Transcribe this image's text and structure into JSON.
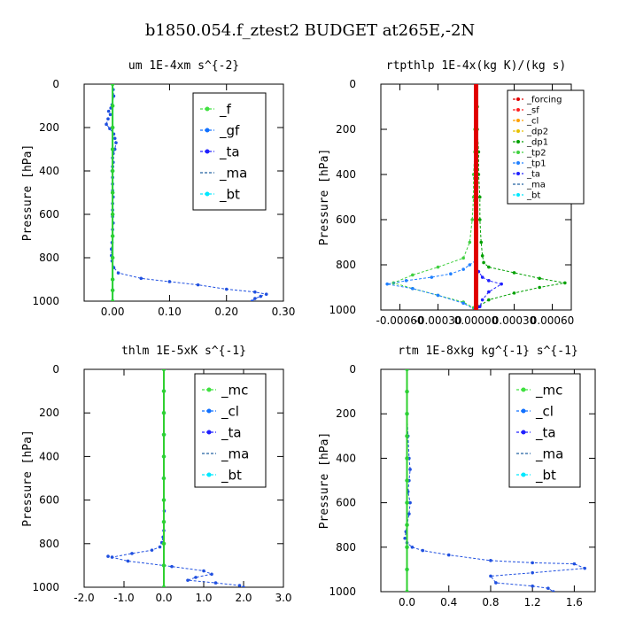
{
  "suptitle": "b1850.054.f_ztest2  BUDGET at265E,-2N",
  "colors": {
    "green": "#00c000",
    "blue": "#2020ff",
    "cyan": "#00d8ff",
    "lime": "#40e040",
    "red": "#ff0000",
    "orange": "#ffa000",
    "darkgreen": "#009000",
    "navy": "#2040c0"
  },
  "chart_data": [
    {
      "type": "line",
      "title": "um   1E-4xm s^{-2}",
      "ylabel": "Pressure [hPa]",
      "xlim": [
        -0.05,
        0.3
      ],
      "ylim": [
        1000,
        0
      ],
      "xticks": [
        "0.00",
        "0.10",
        "0.20",
        "0.30"
      ],
      "xtick_values": [
        0,
        0.1,
        0.2,
        0.3
      ],
      "yticks": [
        "0",
        "200",
        "400",
        "600",
        "800",
        "1000"
      ],
      "legend": [
        {
          "label": "_f",
          "color": "#40e040",
          "marker": "diamond"
        },
        {
          "label": "_gf",
          "color": "#1070ff",
          "marker": "dot"
        },
        {
          "label": "_ta",
          "color": "#2020ff",
          "marker": "dot"
        },
        {
          "label": "_ma",
          "color": "#2060a0",
          "marker": "none"
        },
        {
          "label": "_bt",
          "color": "#00e8ff",
          "marker": "diamond"
        }
      ],
      "series": [
        {
          "name": "_gf",
          "color": "#2050e0",
          "x": [
            0,
            0.001,
            0.002,
            -0.001,
            -0.003,
            -0.007,
            -0.004,
            -0.008,
            -0.011,
            -0.005,
            0.002,
            0.004,
            0.006,
            0.004,
            0.001,
            0.0,
            0.001,
            0.0,
            -0.001,
            0.0,
            0.0,
            0.0,
            0.001,
            0.0,
            0.0,
            0.0,
            0.001,
            0.0,
            0.0,
            -0.001,
            -0.002,
            -0.002,
            -0.001,
            0.002,
            0.01,
            0.05,
            0.1,
            0.15,
            0.2,
            0.25,
            0.27,
            0.26,
            0.25,
            0.245
          ],
          "y": [
            0,
            25,
            55,
            95,
            110,
            125,
            140,
            160,
            185,
            205,
            230,
            250,
            270,
            300,
            320,
            340,
            360,
            380,
            400,
            430,
            460,
            490,
            520,
            550,
            580,
            610,
            640,
            670,
            700,
            730,
            760,
            790,
            815,
            845,
            870,
            895,
            910,
            925,
            945,
            958,
            968,
            978,
            988,
            1000
          ]
        },
        {
          "name": "_bt",
          "color": "#00e8ff",
          "x": [
            0,
            0,
            0,
            0,
            0,
            0,
            0,
            0,
            0,
            0,
            0,
            0
          ],
          "y": [
            0,
            100,
            200,
            300,
            400,
            500,
            600,
            700,
            800,
            900,
            950,
            1000
          ]
        },
        {
          "name": "_f",
          "color": "#30d030",
          "x": [
            0,
            0,
            0,
            0,
            0,
            0,
            0,
            0,
            0,
            0,
            0,
            0
          ],
          "y": [
            0,
            100,
            200,
            300,
            400,
            500,
            600,
            700,
            800,
            900,
            950,
            1000
          ]
        }
      ]
    },
    {
      "type": "line",
      "title": "rtpthlp   1E-4x(kg K)/(kg s)",
      "ylabel": "Pressure [hPa]",
      "xlim": [
        -0.00075,
        0.00075
      ],
      "ylim": [
        1000,
        0
      ],
      "xticks": [
        "-0.00060",
        "-0.00030",
        "0.00000",
        "0.00030",
        "0.00060"
      ],
      "xtick_values": [
        -0.0006,
        -0.0003,
        0,
        0.0003,
        0.0006
      ],
      "yticks": [
        "0",
        "200",
        "400",
        "600",
        "800",
        "1000"
      ],
      "legend": [
        {
          "label": "_forcing",
          "color": "#e00000",
          "marker": "dot"
        },
        {
          "label": "_sf",
          "color": "#ff2020",
          "marker": "diamond"
        },
        {
          "label": "_cl",
          "color": "#ffa000",
          "marker": "star"
        },
        {
          "label": "_dp2",
          "color": "#e8c000",
          "marker": "circle"
        },
        {
          "label": "_dp1",
          "color": "#00a000",
          "marker": "star"
        },
        {
          "label": "_tp2",
          "color": "#40d040",
          "marker": "diamond"
        },
        {
          "label": "_tp1",
          "color": "#2080ff",
          "marker": "dot"
        },
        {
          "label": "_ta",
          "color": "#2020ff",
          "marker": "dot"
        },
        {
          "label": "_ma",
          "color": "#2060a0",
          "marker": "none"
        },
        {
          "label": "_bt",
          "color": "#00e8ff",
          "marker": "diamond"
        }
      ],
      "series": [
        {
          "name": "_dp1",
          "color": "#00a000",
          "x": [
            0,
            1e-05,
            1e-05,
            2e-05,
            2e-05,
            3e-05,
            3e-05,
            4e-05,
            5e-05,
            6e-05,
            0.0001,
            0.0003,
            0.0005,
            0.0007,
            0.0005,
            0.0003,
            0.0001,
            2e-05,
            0
          ],
          "y": [
            0,
            100,
            200,
            300,
            400,
            500,
            600,
            700,
            760,
            790,
            810,
            835,
            860,
            880,
            900,
            925,
            955,
            985,
            1000
          ]
        },
        {
          "name": "_tp2",
          "color": "#40d040",
          "x": [
            0,
            -5e-06,
            -1e-05,
            -1e-05,
            -2e-05,
            -2e-05,
            -3e-05,
            -5e-05,
            -0.0001,
            -0.0003,
            -0.0005,
            -0.00065,
            -0.0005,
            -0.0003,
            -0.0001,
            -2e-05,
            0
          ],
          "y": [
            0,
            100,
            200,
            300,
            400,
            500,
            600,
            700,
            770,
            810,
            845,
            880,
            905,
            935,
            965,
            990,
            1000
          ]
        },
        {
          "name": "_tp1",
          "color": "#2080ff",
          "x": [
            0,
            0,
            -5e-05,
            -0.0001,
            -0.0002,
            -0.00035,
            -0.00055,
            -0.0007,
            -0.0005,
            -0.0003,
            -0.0001,
            0
          ],
          "y": [
            0,
            780,
            800,
            820,
            840,
            855,
            870,
            885,
            905,
            935,
            970,
            1000
          ]
        },
        {
          "name": "_ta",
          "color": "#2020ff",
          "x": [
            0,
            0,
            2e-05,
            5e-05,
            0.0001,
            0.0002,
            0.0001,
            5e-05,
            3e-05,
            0
          ],
          "y": [
            0,
            800,
            830,
            855,
            870,
            885,
            920,
            955,
            985,
            1000
          ]
        },
        {
          "name": "_forcing",
          "color": "#e00000",
          "x": [
            0,
            0,
            0
          ],
          "y": [
            0,
            500,
            1000
          ]
        }
      ]
    },
    {
      "type": "line",
      "title": "thlm   1E-5xK s^{-1}",
      "ylabel": "Pressure [hPa]",
      "xlim": [
        -2.0,
        3.0
      ],
      "ylim": [
        1000,
        0
      ],
      "xticks": [
        "-2.0",
        "-1.0",
        "0.0",
        "1.0",
        "2.0",
        "3.0"
      ],
      "xtick_values": [
        -2,
        -1,
        0,
        1,
        2,
        3
      ],
      "yticks": [
        "0",
        "200",
        "400",
        "600",
        "800",
        "1000"
      ],
      "legend": [
        {
          "label": "_mc",
          "color": "#40e040",
          "marker": "diamond"
        },
        {
          "label": "_cl",
          "color": "#1070ff",
          "marker": "dot"
        },
        {
          "label": "_ta",
          "color": "#2020ff",
          "marker": "dot"
        },
        {
          "label": "_ma",
          "color": "#2060a0",
          "marker": "none"
        },
        {
          "label": "_bt",
          "color": "#00e8ff",
          "marker": "diamond"
        }
      ],
      "series": [
        {
          "name": "_cl",
          "color": "#2050e0",
          "x": [
            0,
            0,
            0,
            0.01,
            0,
            -0.01,
            0,
            0.01,
            0,
            0,
            -0.02,
            -0.05,
            -0.1,
            -0.3,
            -0.8,
            -1.3,
            -1.4,
            -0.9,
            0.2,
            1.0,
            1.2,
            0.8,
            0.6,
            1.3,
            1.9,
            2.0
          ],
          "y": [
            0,
            100,
            200,
            300,
            400,
            500,
            600,
            650,
            700,
            740,
            770,
            795,
            815,
            830,
            845,
            862,
            858,
            880,
            905,
            925,
            940,
            955,
            968,
            980,
            992,
            1000
          ]
        },
        {
          "name": "_bt",
          "color": "#00e8ff",
          "x": [
            0,
            0,
            0,
            0,
            0,
            0,
            0,
            0,
            0,
            0,
            0
          ],
          "y": [
            0,
            100,
            200,
            300,
            400,
            500,
            600,
            700,
            800,
            900,
            1000
          ]
        },
        {
          "name": "_mc",
          "color": "#30d030",
          "x": [
            0,
            0,
            0,
            0,
            0,
            0,
            0,
            0,
            0,
            0,
            0
          ],
          "y": [
            0,
            100,
            200,
            300,
            400,
            500,
            600,
            700,
            800,
            900,
            1000
          ]
        }
      ]
    },
    {
      "type": "line",
      "title": "rtm   1E-8xkg kg^{-1} s^{-1}",
      "ylabel": "Pressure [hPa]",
      "xlim": [
        -0.25,
        1.8
      ],
      "ylim": [
        1000,
        0
      ],
      "xticks": [
        "0.0",
        "0.4",
        "0.8",
        "1.2",
        "1.6"
      ],
      "xtick_values": [
        0,
        0.4,
        0.8,
        1.2,
        1.6
      ],
      "yticks": [
        "0",
        "200",
        "400",
        "600",
        "800",
        "1000"
      ],
      "legend": [
        {
          "label": "_mc",
          "color": "#40e040",
          "marker": "diamond"
        },
        {
          "label": "_cl",
          "color": "#1070ff",
          "marker": "dot"
        },
        {
          "label": "_ta",
          "color": "#2020ff",
          "marker": "dot"
        },
        {
          "label": "_ma",
          "color": "#2060a0",
          "marker": "none"
        },
        {
          "label": "_bt",
          "color": "#00e8ff",
          "marker": "diamond"
        }
      ],
      "series": [
        {
          "name": "_cl",
          "color": "#2050e0",
          "x": [
            0,
            0,
            0,
            0.01,
            0.02,
            0.03,
            0.02,
            0.01,
            0.03,
            0.02,
            0.0,
            -0.01,
            -0.02,
            0.0,
            0.05,
            0.15,
            0.4,
            0.8,
            1.2,
            1.6,
            1.7,
            1.2,
            0.8,
            0.85,
            1.2,
            1.35,
            1.4
          ],
          "y": [
            0,
            100,
            200,
            300,
            400,
            450,
            500,
            550,
            600,
            650,
            700,
            730,
            760,
            780,
            800,
            815,
            835,
            860,
            870,
            875,
            895,
            915,
            930,
            960,
            975,
            985,
            1000
          ]
        },
        {
          "name": "_bt",
          "color": "#00e8ff",
          "x": [
            0,
            0,
            0,
            0,
            0,
            0,
            0,
            0,
            0,
            0,
            0
          ],
          "y": [
            0,
            100,
            200,
            300,
            400,
            500,
            600,
            700,
            800,
            900,
            1000
          ]
        },
        {
          "name": "_mc",
          "color": "#30d030",
          "x": [
            0,
            0,
            0,
            0,
            0,
            0,
            0,
            0,
            0,
            0,
            0
          ],
          "y": [
            0,
            100,
            200,
            300,
            400,
            500,
            600,
            700,
            800,
            900,
            1000
          ]
        }
      ]
    }
  ]
}
